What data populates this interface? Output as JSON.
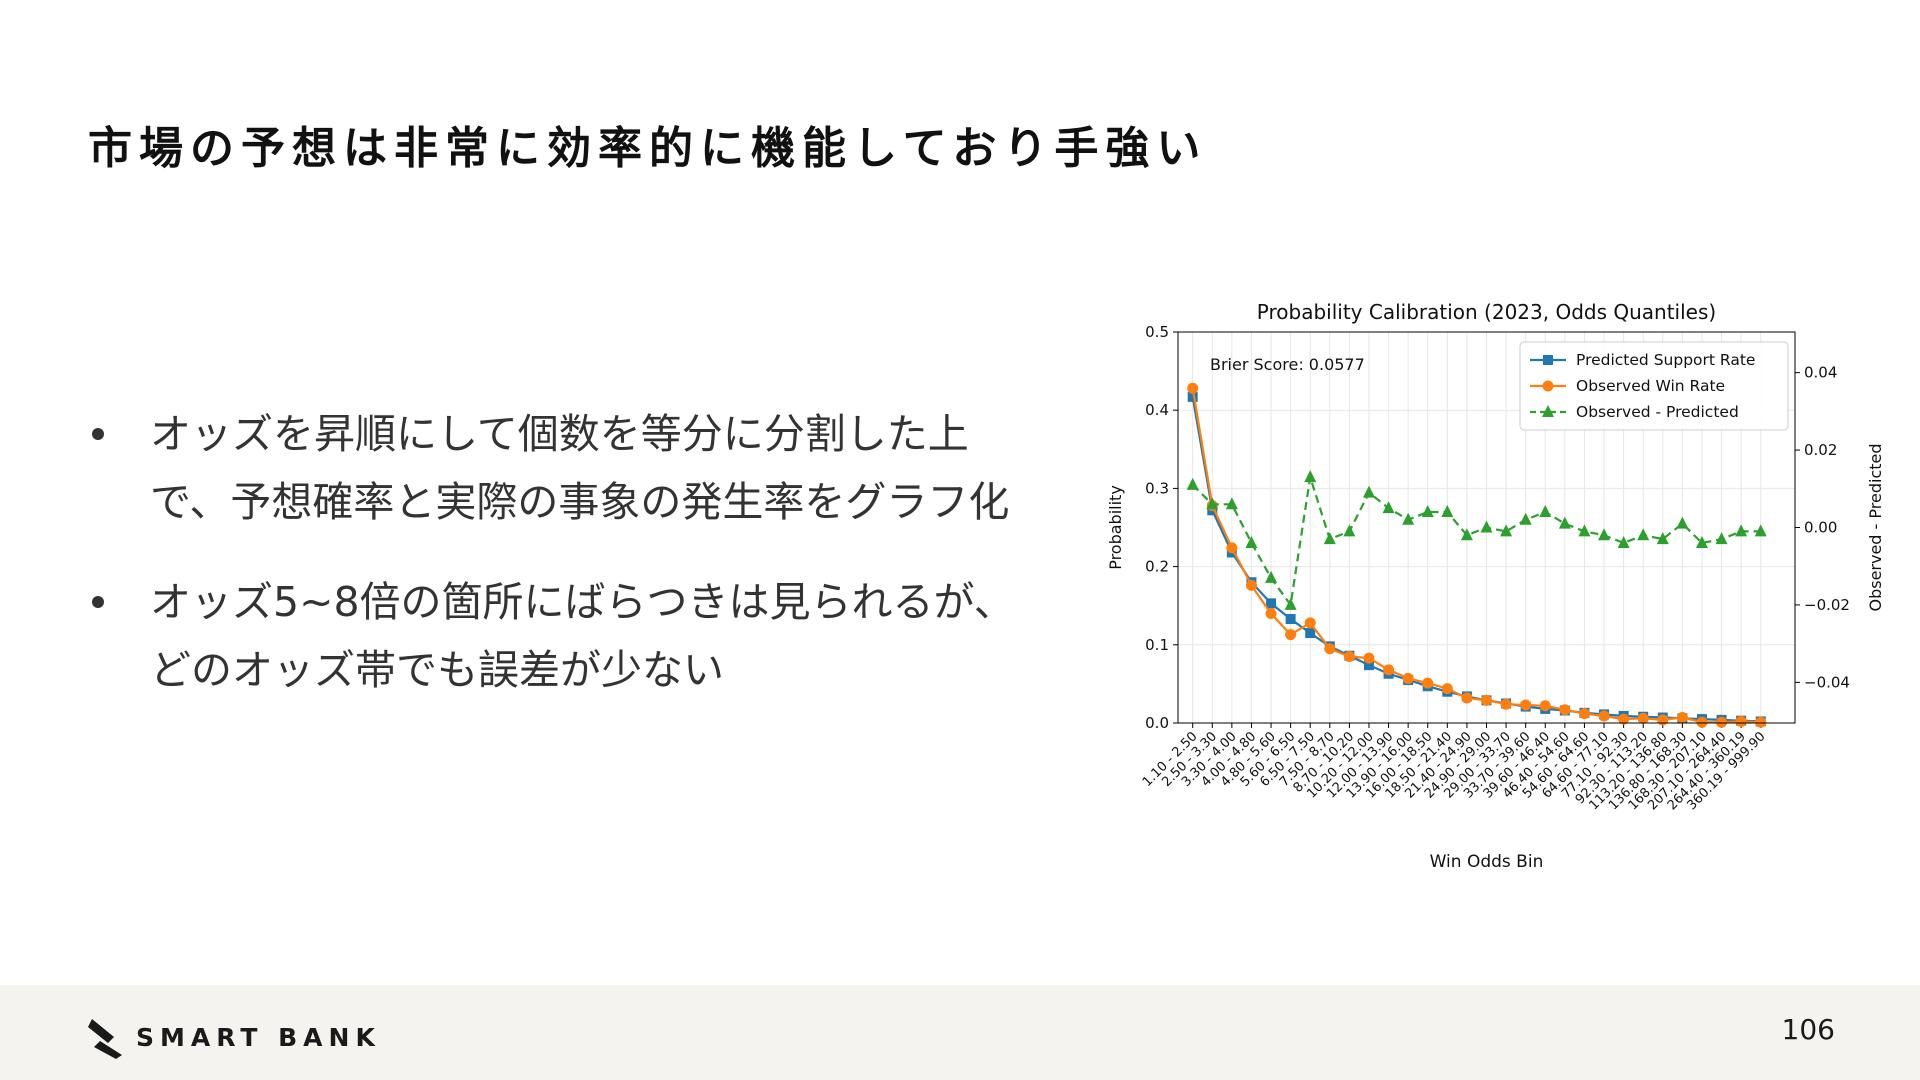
{
  "slide": {
    "title": "市場の予想は非常に効率的に機能しており手強い",
    "bullets": [
      "オッズを昇順にして個数を等分に分割した上で、予想確率と実際の事象の発生率をグラフ化",
      "オッズ5~8倍の箇所にばらつきは見られるが、どのオッズ帯でも誤差が少ない"
    ]
  },
  "footer": {
    "logo_text": "SMART BANK",
    "page_number": "106"
  },
  "chart_data": {
    "type": "line",
    "title": "Probability Calibration (2023, Odds Quantiles)",
    "xlabel": "Win Odds Bin",
    "ylabel": "Probability",
    "ylabel_right": "Observed - Predicted",
    "annotation": "Brier Score: 0.0577",
    "ylim": [
      0,
      0.5
    ],
    "yticks": [
      "0.0",
      "0.1",
      "0.2",
      "0.3",
      "0.4",
      "0.5"
    ],
    "ylim_right": [
      -0.0505,
      0.0505
    ],
    "yticks_right": [
      "−0.04",
      "−0.02",
      "0.00",
      "0.02",
      "0.04"
    ],
    "grid": true,
    "legend_position": "top-right",
    "categories": [
      "1.10 - 2.50",
      "2.50 - 3.30",
      "3.30 - 4.00",
      "4.00 - 4.80",
      "4.80 - 5.60",
      "5.60 - 6.50",
      "6.50 - 7.50",
      "7.50 - 8.70",
      "8.70 - 10.20",
      "10.20 - 12.00",
      "12.00 - 13.90",
      "13.90 - 16.00",
      "16.00 - 18.50",
      "18.50 - 21.40",
      "21.40 - 24.90",
      "24.90 - 29.00",
      "29.00 - 33.70",
      "33.70 - 39.60",
      "39.60 - 46.40",
      "46.40 - 54.60",
      "54.60 - 64.60",
      "64.60 - 77.10",
      "77.10 - 92.30",
      "92.30 - 113.20",
      "113.20 - 136.80",
      "136.80 - 168.30",
      "168.30 - 207.10",
      "207.10 - 264.40",
      "264.40 - 360.19",
      "360.19 - 999.90"
    ],
    "series": [
      {
        "name": "Predicted Support Rate",
        "color": "#1f77b4",
        "marker": "square",
        "axis": "left",
        "values": [
          0.417,
          0.272,
          0.218,
          0.18,
          0.153,
          0.133,
          0.115,
          0.098,
          0.086,
          0.074,
          0.063,
          0.055,
          0.047,
          0.04,
          0.034,
          0.029,
          0.025,
          0.021,
          0.018,
          0.016,
          0.013,
          0.011,
          0.009,
          0.008,
          0.007,
          0.006,
          0.005,
          0.004,
          0.003,
          0.002
        ]
      },
      {
        "name": "Observed Win Rate",
        "color": "#ff7f0e",
        "marker": "circle",
        "axis": "left",
        "values": [
          0.428,
          0.278,
          0.224,
          0.176,
          0.14,
          0.113,
          0.128,
          0.095,
          0.085,
          0.083,
          0.068,
          0.057,
          0.051,
          0.044,
          0.032,
          0.029,
          0.024,
          0.023,
          0.022,
          0.017,
          0.012,
          0.009,
          0.005,
          0.006,
          0.004,
          0.007,
          0.001,
          0.001,
          0.002,
          0.001
        ]
      },
      {
        "name": "Observed - Predicted",
        "color": "#2ca02c",
        "marker": "triangle",
        "dash": true,
        "axis": "right",
        "values": [
          0.011,
          0.006,
          0.006,
          -0.004,
          -0.013,
          -0.02,
          0.013,
          -0.003,
          -0.001,
          0.009,
          0.005,
          0.002,
          0.004,
          0.004,
          -0.002,
          0.0,
          -0.001,
          0.002,
          0.004,
          0.001,
          -0.001,
          -0.002,
          -0.004,
          -0.002,
          -0.003,
          0.001,
          -0.004,
          -0.003,
          -0.001,
          -0.001
        ]
      }
    ]
  }
}
